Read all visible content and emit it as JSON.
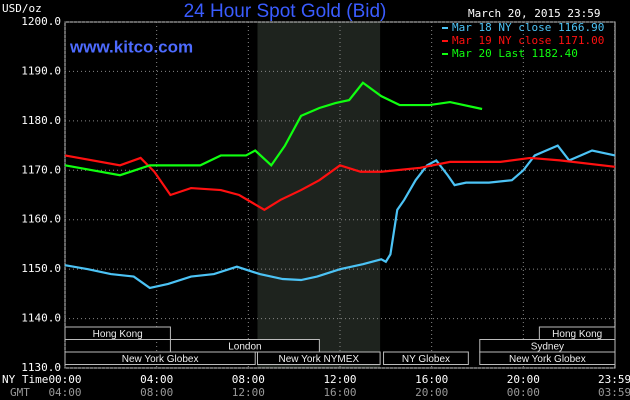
{
  "chart_data": {
    "type": "line",
    "title": "24 Hour Spot Gold (Bid)",
    "y_label": "USD/oz",
    "source": "www.kitco.com",
    "timestamp": "March 20, 2015 23:59",
    "x_label": "NY Time",
    "x2_label": "GMT",
    "xlim": [
      0,
      24
    ],
    "ylim": [
      1130,
      1200
    ],
    "xticks": [
      {
        "value": 0,
        "label": "00:00"
      },
      {
        "value": 4,
        "label": "04:00"
      },
      {
        "value": 8,
        "label": "08:00"
      },
      {
        "value": 12,
        "label": "12:00"
      },
      {
        "value": 16,
        "label": "16:00"
      },
      {
        "value": 20,
        "label": "20:00"
      },
      {
        "value": 23.98,
        "label": "23:59"
      }
    ],
    "x2ticks": [
      {
        "value": 0,
        "label": "04:00"
      },
      {
        "value": 4,
        "label": "08:00"
      },
      {
        "value": 8,
        "label": "12:00"
      },
      {
        "value": 12,
        "label": "16:00"
      },
      {
        "value": 16,
        "label": "20:00"
      },
      {
        "value": 20,
        "label": "00:00"
      },
      {
        "value": 23.98,
        "label": "03:59"
      }
    ],
    "yticks": [
      {
        "value": 1130,
        "label": "1130.0"
      },
      {
        "value": 1140,
        "label": "1140.0"
      },
      {
        "value": 1150,
        "label": "1150.0"
      },
      {
        "value": 1160,
        "label": "1160.0"
      },
      {
        "value": 1170,
        "label": "1170.0"
      },
      {
        "value": 1180,
        "label": "1180.0"
      },
      {
        "value": 1190,
        "label": "1190.0"
      },
      {
        "value": 1200,
        "label": "1200.0"
      }
    ],
    "grid": true,
    "shaded_range": [
      8.4,
      13.75
    ],
    "sessions": [
      [
        {
          "label": "Hong Kong",
          "start": 0,
          "end": 4.6
        },
        {
          "label": "Hong Kong",
          "start": 20.7,
          "end": 24
        }
      ],
      [
        {
          "label": "London",
          "start": 4.6,
          "end": 11.1
        },
        {
          "label": "Sydney",
          "start": 18.1,
          "end": 24
        }
      ],
      [
        {
          "label": "New York Globex",
          "start": 0,
          "end": 8.3
        },
        {
          "label": "New York NYMEX",
          "start": 8.4,
          "end": 13.75
        },
        {
          "label": "NY Globex",
          "start": 13.9,
          "end": 17.6
        },
        {
          "label": "New York Globex",
          "start": 18.1,
          "end": 24
        }
      ]
    ],
    "series": [
      {
        "name": "Mar 18 NY close 1166.90",
        "color": "#4cc3f5",
        "x": [
          0,
          1,
          2,
          3,
          3.7,
          4.5,
          5.5,
          6.5,
          7.5,
          8.5,
          9.5,
          10.3,
          11,
          12,
          13,
          13.8,
          14,
          14.2,
          14.5,
          14.8,
          15.3,
          15.8,
          16.2,
          16.7,
          17,
          17.5,
          18.5,
          19.5,
          20,
          20.5,
          21,
          21.5,
          22,
          22.5,
          23,
          24
        ],
        "values": [
          1150.8,
          1150,
          1149,
          1148.5,
          1146.2,
          1147,
          1148.5,
          1149,
          1150.5,
          1149,
          1148,
          1147.8,
          1148.5,
          1150,
          1151,
          1152,
          1151.5,
          1153,
          1162,
          1164,
          1168,
          1171,
          1172,
          1169,
          1167,
          1167.5,
          1167.5,
          1168,
          1170,
          1173,
          1174,
          1175,
          1172,
          1173,
          1174,
          1173
        ]
      },
      {
        "name": "Mar 19 NY close 1171.00",
        "color": "#ff1010",
        "x": [
          0,
          2.4,
          3.3,
          3.9,
          4.6,
          5.5,
          6.8,
          7.6,
          8.7,
          9.4,
          10.3,
          11.1,
          12,
          12.9,
          13.8,
          15.5,
          16.8,
          19,
          20.3,
          21.6,
          24
        ],
        "values": [
          1173,
          1171,
          1172.5,
          1169.7,
          1165,
          1166.4,
          1166,
          1165,
          1162,
          1164,
          1166,
          1168,
          1171,
          1169.7,
          1169.7,
          1170.5,
          1171.7,
          1171.7,
          1172.5,
          1172,
          1170.7
        ]
      },
      {
        "name": "Mar 20 Last 1182.40",
        "color": "#10ff10",
        "x": [
          0,
          2.4,
          3.7,
          5.9,
          6.8,
          7.9,
          8.3,
          9,
          9.6,
          10.3,
          11.1,
          11.8,
          12.4,
          13,
          13.8,
          14.6,
          15.9,
          16.8,
          18.2
        ],
        "values": [
          1171,
          1169,
          1171,
          1171,
          1173,
          1173,
          1174,
          1171,
          1175,
          1181,
          1182.6,
          1183.6,
          1184.2,
          1187.7,
          1185,
          1183.2,
          1183.2,
          1183.8,
          1182.4
        ]
      }
    ]
  }
}
